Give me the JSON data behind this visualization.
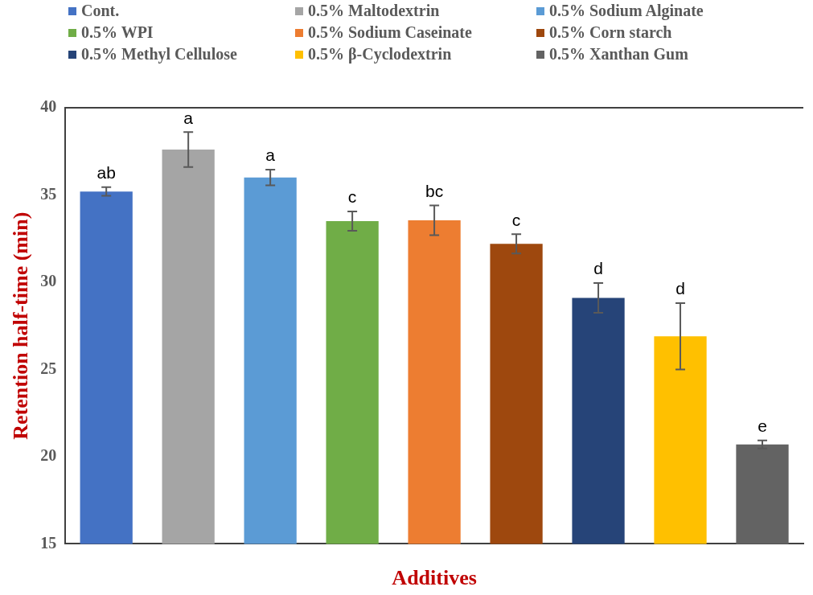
{
  "chart_data": {
    "type": "bar",
    "xlabel": "Additives",
    "ylabel": "Retention half-time (min)",
    "categories": [
      null,
      null,
      null,
      null,
      null,
      null,
      null,
      null,
      null
    ],
    "ylim": [
      15,
      40
    ],
    "yticks": [
      15,
      20,
      25,
      30,
      35,
      40
    ],
    "grid": false,
    "legend": "top",
    "series": [
      {
        "name": "Cont.",
        "color": "#4472c4",
        "values": [
          35.2,
          null,
          null,
          null,
          null,
          null,
          null,
          null,
          null
        ],
        "errors": [
          0.25,
          null,
          null,
          null,
          null,
          null,
          null,
          null,
          null
        ],
        "value_labels": [
          "ab",
          null,
          null,
          null,
          null,
          null,
          null,
          null,
          null
        ]
      },
      {
        "name": "0.5% Maltodextrin",
        "color": "#a5a5a5",
        "values": [
          null,
          37.6,
          null,
          null,
          null,
          null,
          null,
          null,
          null
        ],
        "errors": [
          null,
          1.0,
          null,
          null,
          null,
          null,
          null,
          null,
          null
        ],
        "value_labels": [
          null,
          "a",
          null,
          null,
          null,
          null,
          null,
          null,
          null
        ]
      },
      {
        "name": "0.5% Sodium Alginate",
        "color": "#5b9bd5",
        "values": [
          null,
          null,
          36.0,
          null,
          null,
          null,
          null,
          null,
          null
        ],
        "errors": [
          null,
          null,
          0.45,
          null,
          null,
          null,
          null,
          null,
          null
        ],
        "value_labels": [
          null,
          null,
          "a",
          null,
          null,
          null,
          null,
          null,
          null
        ]
      },
      {
        "name": "0.5% WPI",
        "color": "#70ad47",
        "values": [
          null,
          null,
          null,
          33.5,
          null,
          null,
          null,
          null,
          null
        ],
        "errors": [
          null,
          null,
          null,
          0.55,
          null,
          null,
          null,
          null,
          null
        ],
        "value_labels": [
          null,
          null,
          null,
          "c",
          null,
          null,
          null,
          null,
          null
        ]
      },
      {
        "name": "0.5% Sodium Caseinate",
        "color": "#ed7d31",
        "values": [
          null,
          null,
          null,
          null,
          33.55,
          null,
          null,
          null,
          null
        ],
        "errors": [
          null,
          null,
          null,
          null,
          0.85,
          null,
          null,
          null,
          null
        ],
        "value_labels": [
          null,
          null,
          null,
          null,
          "bc",
          null,
          null,
          null,
          null
        ]
      },
      {
        "name": "0.5% Corn starch",
        "color": "#9e480e",
        "values": [
          null,
          null,
          null,
          null,
          null,
          32.2,
          null,
          null,
          null
        ],
        "errors": [
          null,
          null,
          null,
          null,
          null,
          0.55,
          null,
          null,
          null
        ],
        "value_labels": [
          null,
          null,
          null,
          null,
          null,
          "c",
          null,
          null,
          null
        ]
      },
      {
        "name": "0.5% Methyl Cellulose",
        "color": "#264478",
        "values": [
          null,
          null,
          null,
          null,
          null,
          null,
          29.1,
          null,
          null
        ],
        "errors": [
          null,
          null,
          null,
          null,
          null,
          null,
          0.85,
          null,
          null
        ],
        "value_labels": [
          null,
          null,
          null,
          null,
          null,
          null,
          "d",
          null,
          null
        ]
      },
      {
        "name": "0.5% β-Cyclodextrin",
        "color": "#ffc000",
        "values": [
          null,
          null,
          null,
          null,
          null,
          null,
          null,
          26.9,
          null
        ],
        "errors": [
          null,
          null,
          null,
          null,
          null,
          null,
          null,
          1.9,
          null
        ],
        "value_labels": [
          null,
          null,
          null,
          null,
          null,
          null,
          null,
          "d",
          null
        ]
      },
      {
        "name": "0.5% Xanthan Gum",
        "color": "#636363",
        "values": [
          null,
          null,
          null,
          null,
          null,
          null,
          null,
          null,
          20.7
        ],
        "errors": [
          null,
          null,
          null,
          null,
          null,
          null,
          null,
          null,
          0.23
        ],
        "value_labels": [
          null,
          null,
          null,
          null,
          null,
          null,
          null,
          null,
          "e"
        ]
      }
    ]
  }
}
